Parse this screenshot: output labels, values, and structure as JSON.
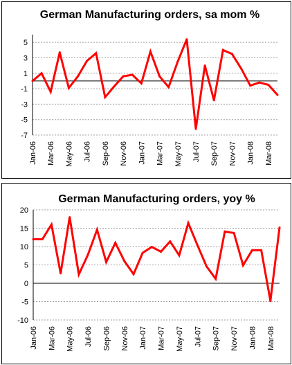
{
  "chart_data": [
    {
      "type": "line",
      "title": "German Manufacturing orders, sa mom %",
      "xlabel": "",
      "ylabel": "",
      "ylim": [
        -7,
        6
      ],
      "yticks": [
        5,
        3,
        1,
        -1,
        -3,
        -5,
        -7
      ],
      "grid": true,
      "line_color": "#ff0000",
      "x_tick_labels": [
        "Jan-06",
        "Mar-06",
        "May-06",
        "Jul-06",
        "Sep-06",
        "Nov-06",
        "Jan-07",
        "Mar-07",
        "May-07",
        "Jul-07",
        "Sep-07",
        "Nov-07",
        "Jan-08",
        "Mar-08"
      ],
      "x": [
        "Jan-06",
        "Feb-06",
        "Mar-06",
        "Apr-06",
        "May-06",
        "Jun-06",
        "Jul-06",
        "Aug-06",
        "Sep-06",
        "Oct-06",
        "Nov-06",
        "Dec-06",
        "Jan-07",
        "Feb-07",
        "Mar-07",
        "Apr-07",
        "May-07",
        "Jun-07",
        "Jul-07",
        "Aug-07",
        "Sep-07",
        "Oct-07",
        "Nov-07",
        "Dec-07",
        "Jan-08",
        "Feb-08",
        "Mar-08",
        "Apr-08"
      ],
      "series": [
        {
          "values": [
            0.0,
            1.0,
            -1.4,
            3.7,
            -0.9,
            0.6,
            2.6,
            3.6,
            -2.1,
            -0.7,
            0.6,
            0.8,
            -0.3,
            3.8,
            0.6,
            -0.8,
            2.5,
            5.4,
            -6.2,
            2.0,
            -2.5,
            4.0,
            3.5,
            1.6,
            -0.6,
            -0.2,
            -0.5,
            -1.8
          ]
        }
      ]
    },
    {
      "type": "line",
      "title": "German Manufacturing orders,  yoy %",
      "xlabel": "",
      "ylabel": "",
      "ylim": [
        -10,
        20
      ],
      "yticks": [
        20,
        15,
        10,
        5,
        0,
        -5,
        -10
      ],
      "grid": true,
      "line_color": "#ff0000",
      "x_tick_labels": [
        "Jan-06",
        "Mar-06",
        "May-06",
        "Jul-06",
        "Sep-06",
        "Nov-06",
        "Jan-07",
        "Mar-07",
        "May-07",
        "Jul-07",
        "Sep-07",
        "Nov-07",
        "Jan-08",
        "Mar-08"
      ],
      "x": [
        "Jan-06",
        "Feb-06",
        "Mar-06",
        "Apr-06",
        "May-06",
        "Jun-06",
        "Jul-06",
        "Aug-06",
        "Sep-06",
        "Oct-06",
        "Nov-06",
        "Dec-06",
        "Jan-07",
        "Feb-07",
        "Mar-07",
        "Apr-07",
        "May-07",
        "Jun-07",
        "Jul-07",
        "Aug-07",
        "Sep-07",
        "Oct-07",
        "Nov-07",
        "Dec-07",
        "Jan-08",
        "Feb-08",
        "Mar-08",
        "Apr-08"
      ],
      "series": [
        {
          "values": [
            12.0,
            12.0,
            16.0,
            2.7,
            18.0,
            2.4,
            7.8,
            14.6,
            5.8,
            11.0,
            6.0,
            2.5,
            8.3,
            9.9,
            8.6,
            11.4,
            7.6,
            16.4,
            10.4,
            4.6,
            1.2,
            14.1,
            13.7,
            4.9,
            9.0,
            9.0,
            -4.8,
            15.2
          ]
        }
      ]
    }
  ]
}
